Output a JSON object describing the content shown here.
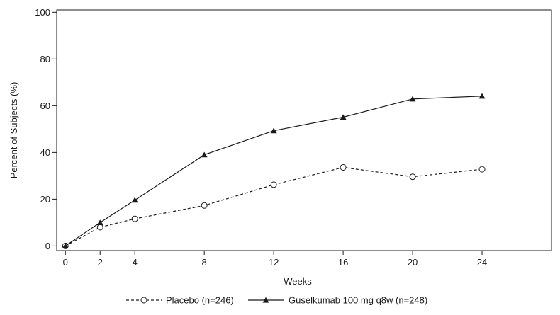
{
  "chart_data": {
    "type": "line",
    "title": "",
    "xlabel": "Weeks",
    "ylabel": "Percent of Subjects (%)",
    "xlim": [
      -0.5,
      28
    ],
    "ylim": [
      -2,
      101
    ],
    "xticks": [
      0,
      2,
      4,
      8,
      12,
      16,
      20,
      24
    ],
    "yticks": [
      0,
      20,
      40,
      60,
      80,
      100
    ],
    "grid": false,
    "legend_position": "bottom",
    "series": [
      {
        "name": "Placebo (n=246)",
        "style": "dashed",
        "marker": "open-circle",
        "color": "#1a1a1a",
        "x": [
          0,
          2,
          4,
          8,
          12,
          16,
          20,
          24
        ],
        "y": [
          0,
          8,
          11.6,
          17.3,
          26.2,
          33.6,
          29.6,
          32.8
        ]
      },
      {
        "name": "Guselkumab 100 mg q8w (n=248)",
        "style": "solid",
        "marker": "filled-triangle",
        "color": "#1a1a1a",
        "x": [
          0,
          2,
          4,
          8,
          12,
          16,
          20,
          24
        ],
        "y": [
          0,
          10,
          19.6,
          39,
          49.3,
          55.1,
          62.9,
          64.1
        ]
      }
    ]
  }
}
